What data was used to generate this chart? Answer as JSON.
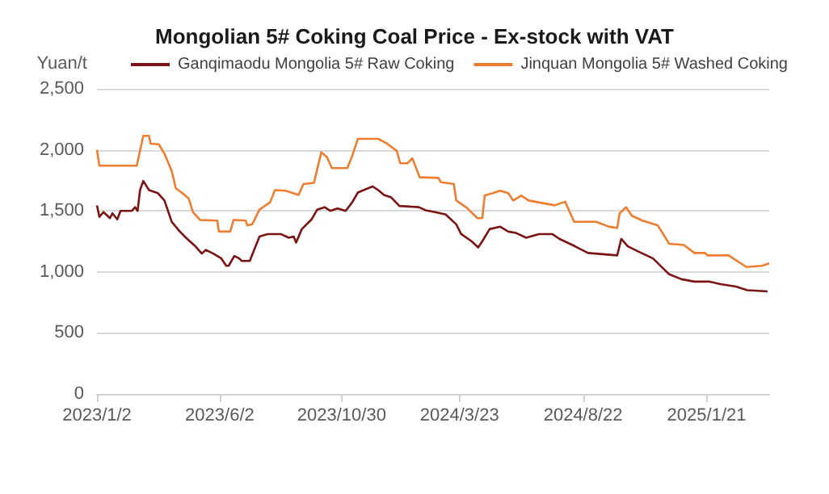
{
  "chart_data": {
    "type": "line",
    "title": "Mongolian 5# Coking Coal Price - Ex-stock with VAT",
    "ylabel": "Yuan/t",
    "xlim": [
      "2023-01-02",
      "2025-04-08"
    ],
    "xticks": [
      {
        "value": "2023-01-02",
        "label": "2023/1/2"
      },
      {
        "value": "2023-06-02",
        "label": "2023/6/2"
      },
      {
        "value": "2023-10-30",
        "label": "2023/10/30"
      },
      {
        "value": "2024-03-23",
        "label": "2024/3/23"
      },
      {
        "value": "2024-08-22",
        "label": "2024/8/22"
      },
      {
        "value": "2025-01-21",
        "label": "2025/1/21"
      }
    ],
    "ylim": [
      0,
      2500
    ],
    "yticks": [
      {
        "value": 0,
        "label": "0"
      },
      {
        "value": 500,
        "label": "500"
      },
      {
        "value": 1000,
        "label": "1,000"
      },
      {
        "value": 1500,
        "label": "1,500"
      },
      {
        "value": 2000,
        "label": "2,000"
      },
      {
        "value": 2500,
        "label": "2,500"
      }
    ],
    "grid": "y",
    "legend": "top",
    "marker": "none",
    "line_style": "solid",
    "series": [
      {
        "name": "Ganqimaodu Mongolia 5# Raw Coking",
        "color": "#7b1414",
        "x": [
          "2023-01-02",
          "2023-01-05",
          "2023-01-10",
          "2023-01-18",
          "2023-01-21",
          "2023-01-27",
          "2023-01-31",
          "2023-02-14",
          "2023-02-18",
          "2023-02-21",
          "2023-02-24",
          "2023-02-28",
          "2023-03-07",
          "2023-03-18",
          "2023-03-26",
          "2023-04-04",
          "2023-04-14",
          "2023-04-23",
          "2023-05-03",
          "2023-05-11",
          "2023-05-16",
          "2023-05-25",
          "2023-06-04",
          "2023-06-10",
          "2023-06-13",
          "2023-06-20",
          "2023-06-26",
          "2023-06-29",
          "2023-07-09",
          "2023-07-15",
          "2023-07-21",
          "2023-07-31",
          "2023-08-16",
          "2023-08-26",
          "2023-09-01",
          "2023-09-04",
          "2023-09-11",
          "2023-09-23",
          "2023-09-30",
          "2023-10-09",
          "2023-10-16",
          "2023-10-25",
          "2023-11-04",
          "2023-11-12",
          "2023-11-19",
          "2023-11-26",
          "2023-12-07",
          "2023-12-14",
          "2023-12-21",
          "2023-12-30",
          "2024-01-09",
          "2024-02-02",
          "2024-02-10",
          "2024-02-22",
          "2024-03-06",
          "2024-03-19",
          "2024-03-25",
          "2024-04-07",
          "2024-04-15",
          "2024-04-20",
          "2024-04-29",
          "2024-05-12",
          "2024-05-22",
          "2024-05-31",
          "2024-06-13",
          "2024-06-29",
          "2024-07-15",
          "2024-07-24",
          "2024-08-12",
          "2024-08-28",
          "2024-10-03",
          "2024-10-08",
          "2024-10-16",
          "2024-10-28",
          "2024-11-16",
          "2024-12-06",
          "2024-12-21",
          "2025-01-06",
          "2025-01-25",
          "2025-02-07",
          "2025-02-26",
          "2025-03-12",
          "2025-04-06"
        ],
        "values": [
          1545,
          1450,
          1490,
          1440,
          1480,
          1430,
          1500,
          1500,
          1530,
          1500,
          1670,
          1745,
          1670,
          1645,
          1585,
          1410,
          1330,
          1270,
          1210,
          1150,
          1180,
          1150,
          1110,
          1050,
          1050,
          1130,
          1110,
          1090,
          1090,
          1190,
          1290,
          1310,
          1310,
          1280,
          1290,
          1240,
          1350,
          1430,
          1510,
          1530,
          1500,
          1520,
          1500,
          1570,
          1650,
          1670,
          1700,
          1670,
          1630,
          1610,
          1540,
          1530,
          1505,
          1490,
          1470,
          1390,
          1310,
          1250,
          1200,
          1250,
          1350,
          1370,
          1330,
          1320,
          1280,
          1310,
          1310,
          1270,
          1210,
          1155,
          1135,
          1270,
          1210,
          1170,
          1110,
          980,
          940,
          920,
          920,
          900,
          880,
          850,
          840
        ]
      },
      {
        "name": "Jinquan Mongolia 5# Washed Coking",
        "color": "#ed7d31",
        "x": [
          "2023-01-02",
          "2023-01-05",
          "2023-02-20",
          "2023-02-28",
          "2023-03-07",
          "2023-03-09",
          "2023-03-19",
          "2023-03-26",
          "2023-04-04",
          "2023-04-09",
          "2023-04-17",
          "2023-04-25",
          "2023-04-30",
          "2023-05-09",
          "2023-05-30",
          "2023-06-01",
          "2023-06-15",
          "2023-06-19",
          "2023-07-04",
          "2023-07-06",
          "2023-07-12",
          "2023-07-21",
          "2023-08-03",
          "2023-08-09",
          "2023-08-22",
          "2023-09-07",
          "2023-09-13",
          "2023-09-26",
          "2023-10-05",
          "2023-10-12",
          "2023-10-18",
          "2023-11-06",
          "2023-11-12",
          "2023-11-19",
          "2023-12-14",
          "2023-12-24",
          "2024-01-06",
          "2024-01-10",
          "2024-01-19",
          "2024-01-25",
          "2024-02-03",
          "2024-02-26",
          "2024-02-29",
          "2024-03-06",
          "2024-03-16",
          "2024-03-19",
          "2024-04-01",
          "2024-04-14",
          "2024-04-20",
          "2024-04-23",
          "2024-05-03",
          "2024-05-12",
          "2024-05-22",
          "2024-05-28",
          "2024-06-07",
          "2024-06-16",
          "2024-07-18",
          "2024-07-31",
          "2024-08-11",
          "2024-09-07",
          "2024-09-23",
          "2024-10-03",
          "2024-10-06",
          "2024-10-14",
          "2024-10-21",
          "2024-11-03",
          "2024-11-22",
          "2024-12-06",
          "2024-12-24",
          "2025-01-06",
          "2025-01-19",
          "2025-01-22",
          "2025-02-17",
          "2025-03-11",
          "2025-03-30",
          "2025-04-08"
        ],
        "values": [
          2000,
          1870,
          1870,
          2115,
          2115,
          2050,
          2045,
          1970,
          1825,
          1685,
          1645,
          1600,
          1490,
          1425,
          1420,
          1330,
          1330,
          1425,
          1420,
          1380,
          1390,
          1510,
          1570,
          1670,
          1665,
          1630,
          1720,
          1730,
          1980,
          1940,
          1850,
          1850,
          1950,
          2090,
          2090,
          2055,
          1990,
          1890,
          1890,
          1930,
          1775,
          1770,
          1735,
          1730,
          1720,
          1585,
          1525,
          1440,
          1440,
          1625,
          1645,
          1665,
          1645,
          1585,
          1625,
          1585,
          1545,
          1575,
          1410,
          1410,
          1370,
          1360,
          1480,
          1530,
          1460,
          1420,
          1380,
          1230,
          1220,
          1155,
          1155,
          1135,
          1135,
          1040,
          1050,
          1070
        ]
      }
    ]
  }
}
